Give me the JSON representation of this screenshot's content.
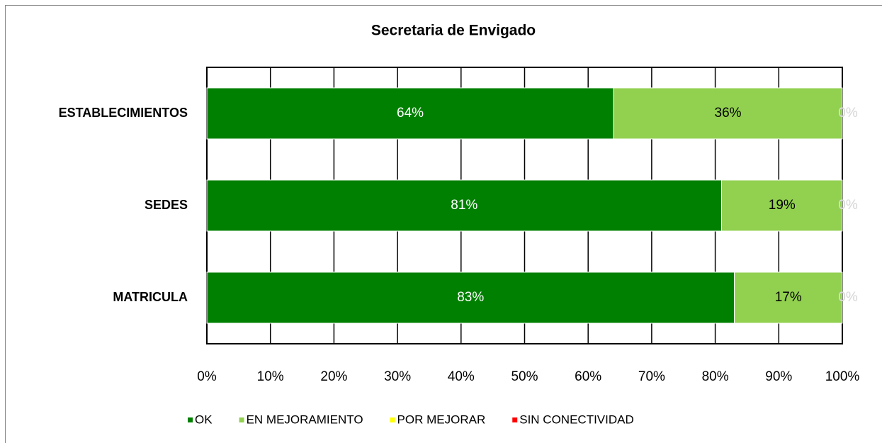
{
  "chart_data": {
    "type": "bar_stacked_horizontal",
    "title": "Secretaria de Envigado",
    "categories": [
      "ESTABLECIMIENTOS",
      "SEDES",
      "MATRICULA"
    ],
    "series": [
      {
        "name": "OK",
        "color": "#008000",
        "values": [
          64,
          81,
          83
        ],
        "value_labels": [
          "64%",
          "81%",
          "83%"
        ]
      },
      {
        "name": "EN MEJORAMIENTO",
        "color": "#92d050",
        "values": [
          36,
          19,
          17
        ],
        "value_labels": [
          "36%",
          "19%",
          "17%"
        ]
      },
      {
        "name": "POR MEJORAR",
        "color": "#ffff00",
        "values": [
          0,
          0,
          0
        ],
        "value_labels": [
          "0%",
          "0%",
          "0%"
        ]
      },
      {
        "name": "SIN CONECTIVIDAD",
        "color": "#ff0000",
        "values": [
          0,
          0,
          0
        ],
        "value_labels": [
          "0%",
          "0%",
          "0%"
        ]
      }
    ],
    "xlim": [
      0,
      100
    ],
    "xticks": [
      {
        "value": 0,
        "label": "0%"
      },
      {
        "value": 10,
        "label": "10%"
      },
      {
        "value": 20,
        "label": "20%"
      },
      {
        "value": 30,
        "label": "30%"
      },
      {
        "value": 40,
        "label": "40%"
      },
      {
        "value": 50,
        "label": "50%"
      },
      {
        "value": 60,
        "label": "60%"
      },
      {
        "value": 70,
        "label": "70%"
      },
      {
        "value": 80,
        "label": "80%"
      },
      {
        "value": 90,
        "label": "90%"
      },
      {
        "value": 100,
        "label": "100%"
      }
    ],
    "grid": true,
    "legend": "bottom"
  }
}
